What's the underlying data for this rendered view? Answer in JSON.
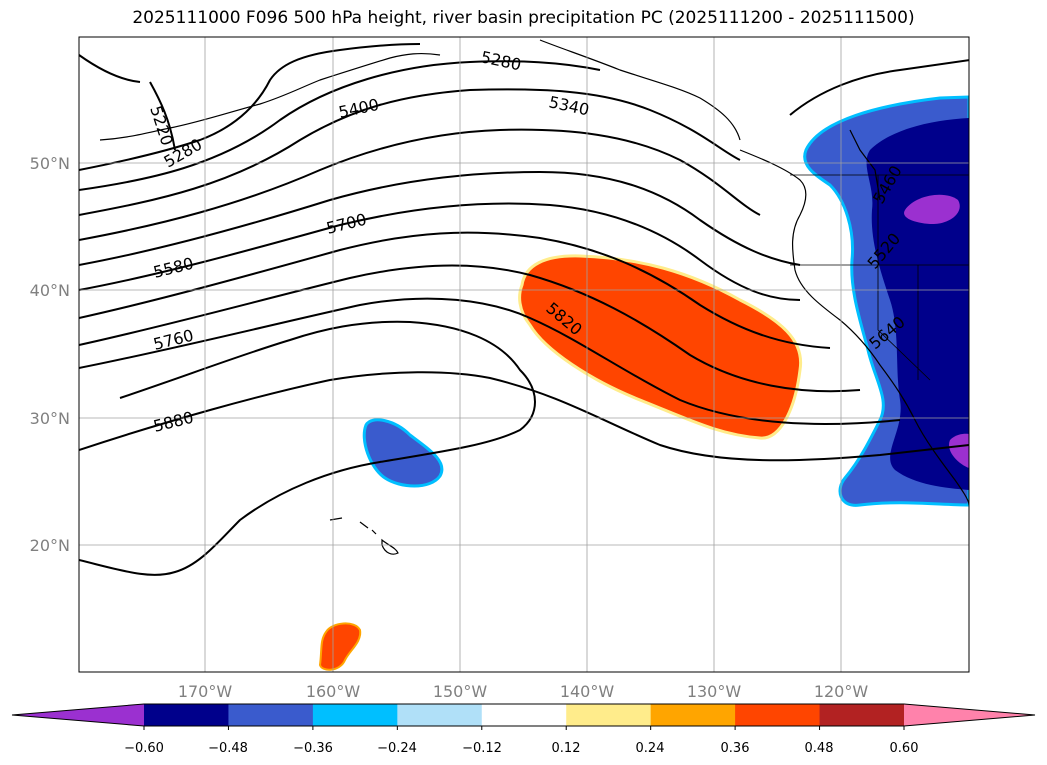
{
  "title": "2025111000 F096 500 hPa height, river basin precipitation PC (2025111200 - 2025111500)",
  "map": {
    "lon_range": [
      -180,
      -110
    ],
    "lat_range": [
      10,
      60
    ],
    "gridlines": true,
    "lat_ticks": [
      "20°N",
      "30°N",
      "40°N",
      "50°N"
    ],
    "lon_ticks": [
      "170°W",
      "160°W",
      "150°W",
      "140°W",
      "130°W",
      "120°W"
    ],
    "contour_labels": [
      "5220",
      "5280",
      "5280",
      "5340",
      "5400",
      "5580",
      "5700",
      "5760",
      "5820",
      "5880",
      "5460",
      "5520",
      "5640"
    ]
  },
  "colorbar": {
    "ticks": [
      "−0.60",
      "−0.48",
      "−0.36",
      "−0.24",
      "−0.12",
      "0.12",
      "0.24",
      "0.36",
      "0.48",
      "0.60"
    ],
    "colors": [
      "#9b30d0",
      "#00008b",
      "#3a5bcd",
      "#00bfff",
      "#b0e0f8",
      "#ffffff",
      "#ffec8b",
      "#ffa500",
      "#ff4500",
      "#b22222",
      "#ff82ab"
    ],
    "extend": "both"
  }
}
